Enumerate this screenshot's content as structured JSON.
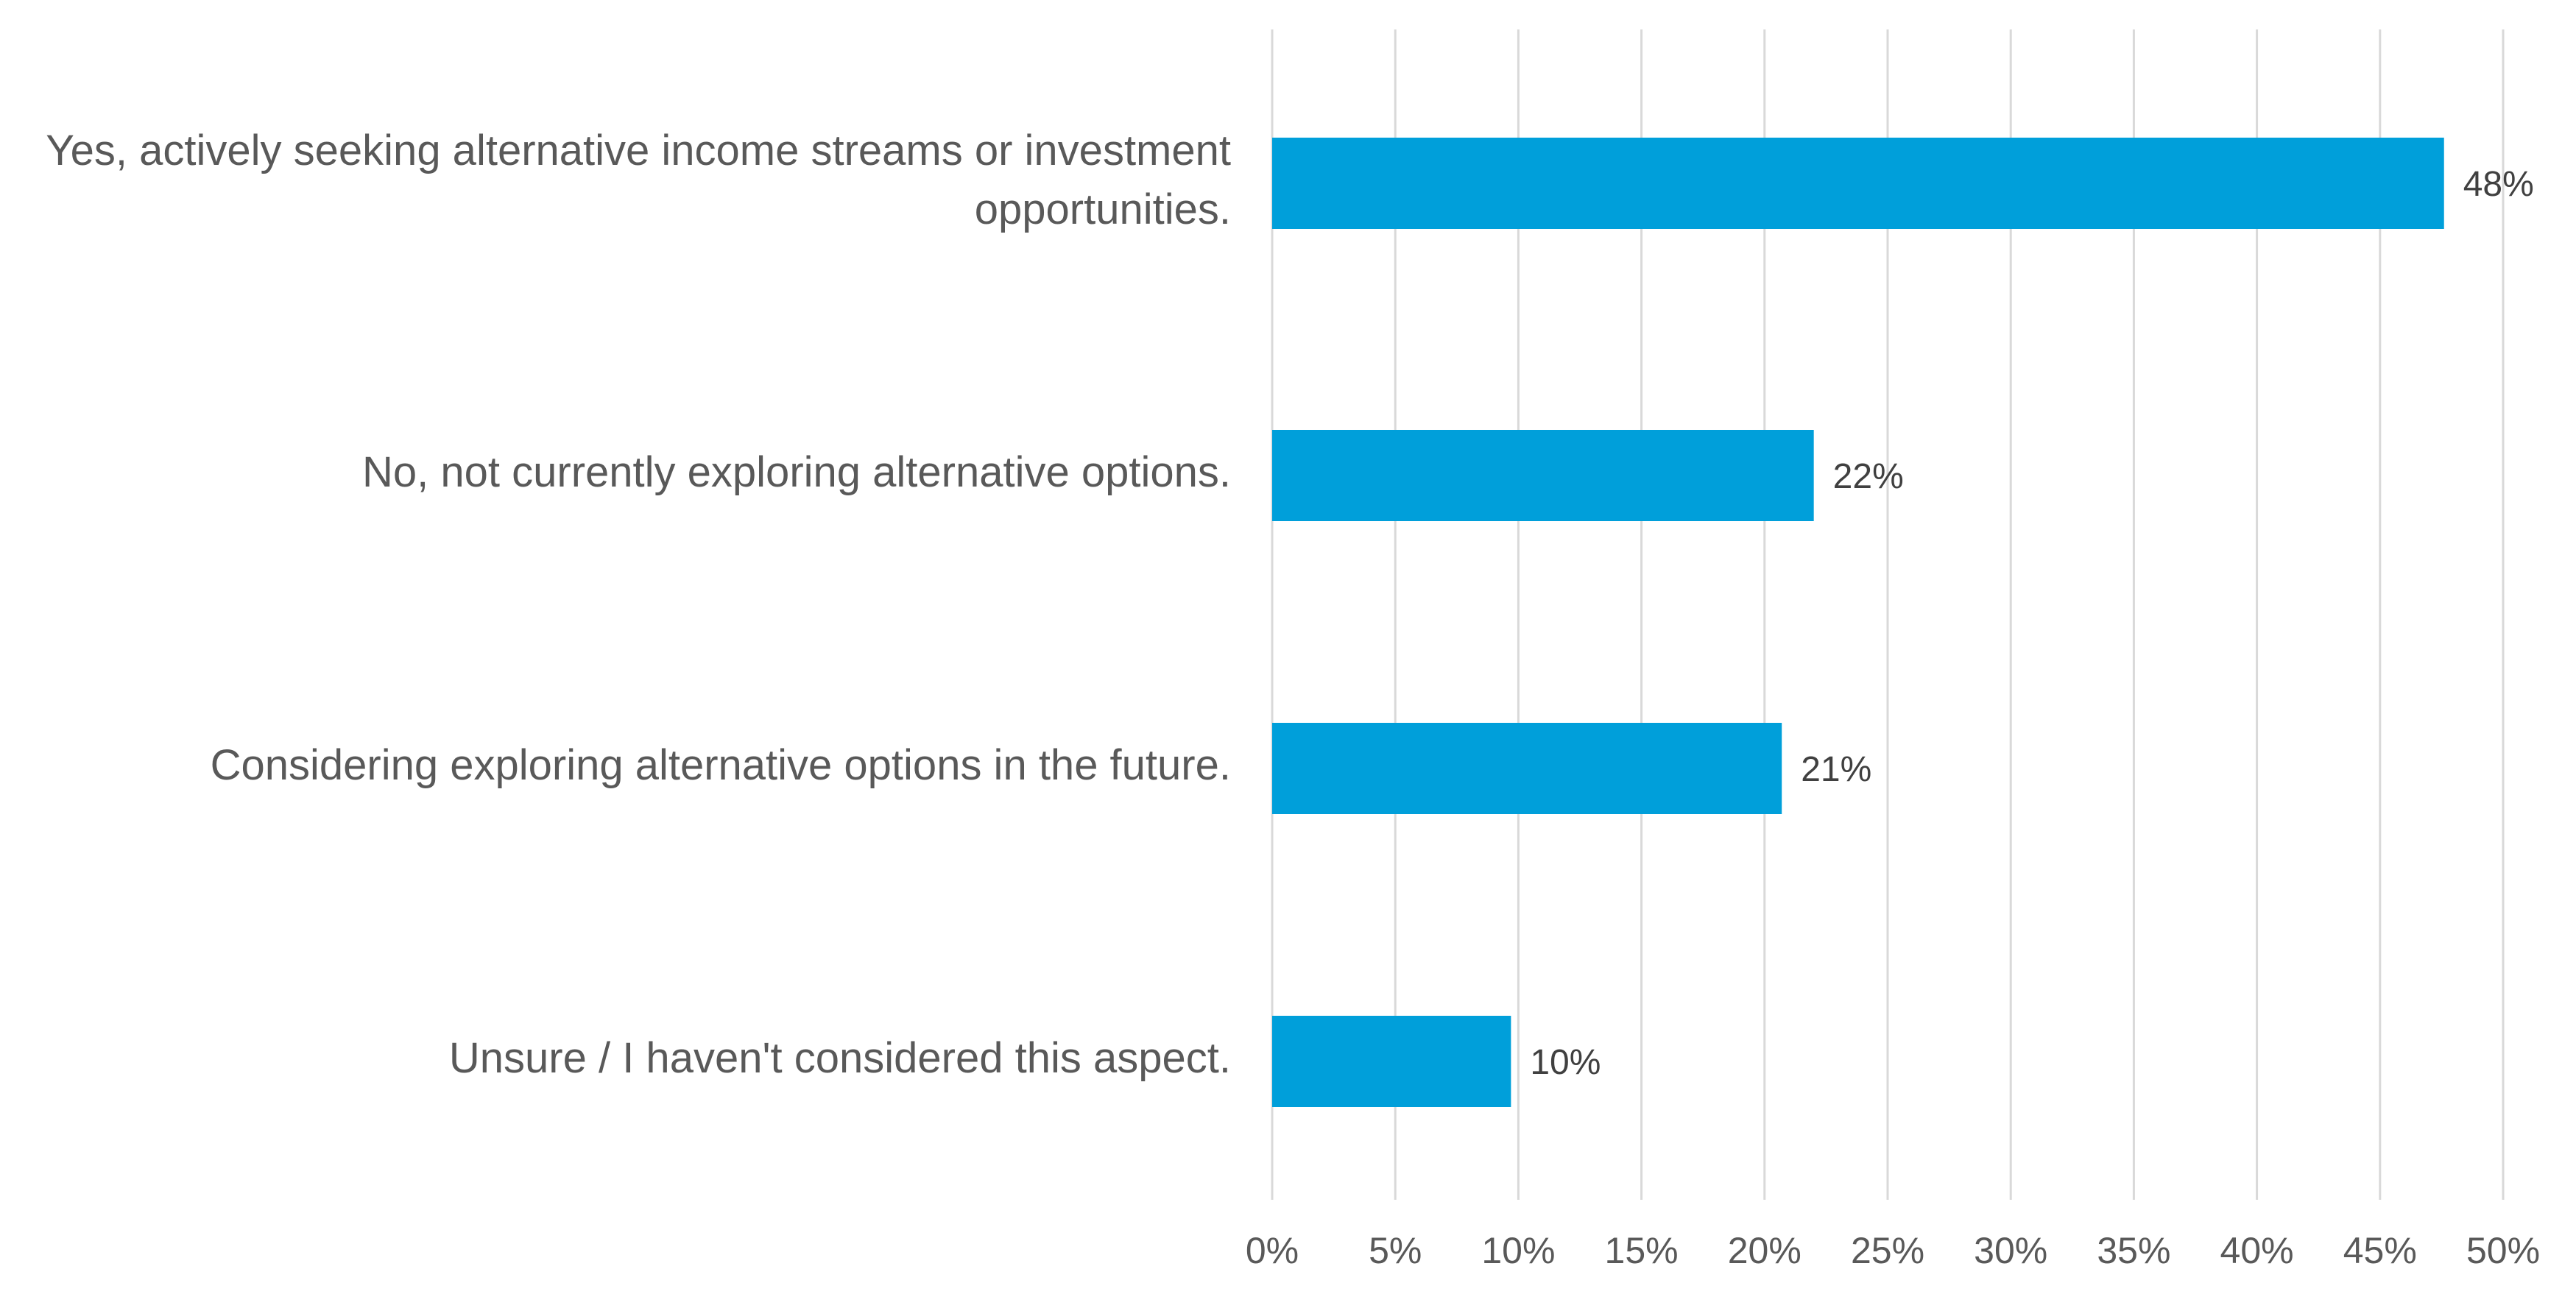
{
  "chart_data": {
    "type": "bar",
    "orientation": "horizontal",
    "categories": [
      "Yes, actively seeking alternative income streams or investment\nopportunities.",
      "No, not currently exploring alternative options.",
      "Considering exploring alternative options in the future.",
      "Unsure / I haven't considered this aspect."
    ],
    "values": [
      47.6,
      22.0,
      20.7,
      9.7
    ],
    "data_labels": [
      "48%",
      "22%",
      "21%",
      "10%"
    ],
    "xlim": [
      0,
      50
    ],
    "x_ticks": [
      0,
      5,
      10,
      15,
      20,
      25,
      30,
      35,
      40,
      45,
      50
    ],
    "x_tick_labels": [
      "0%",
      "5%",
      "10%",
      "15%",
      "20%",
      "25%",
      "30%",
      "35%",
      "40%",
      "45%",
      "50%"
    ],
    "grid": true,
    "legend": "none",
    "colors": {
      "bar": "#009FDA",
      "grid": "#D9D9D9",
      "text": "#595959",
      "data_label": "#404040"
    }
  }
}
